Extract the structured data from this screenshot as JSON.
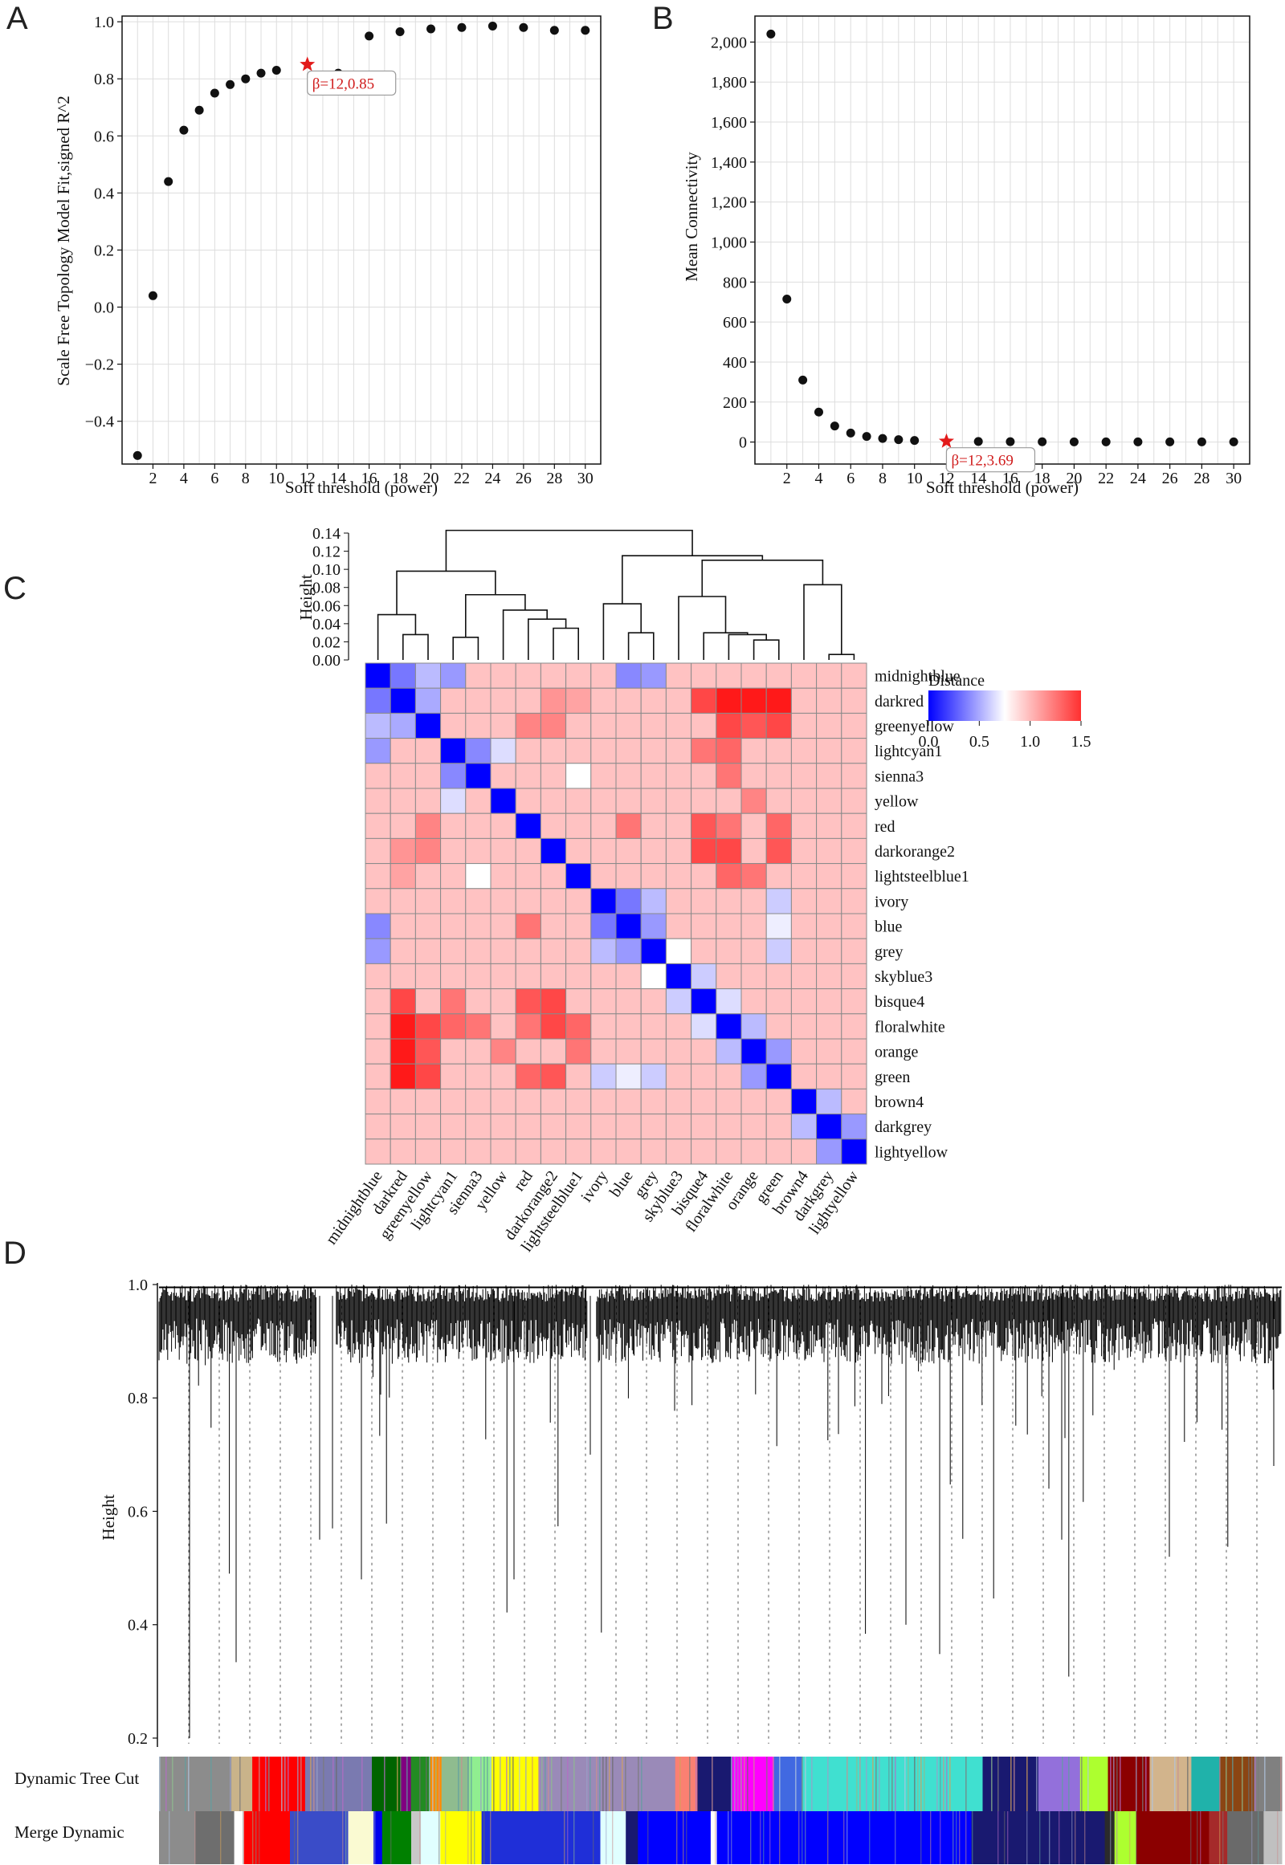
{
  "panels": {
    "a": "A",
    "b": "B",
    "c": "C",
    "d": "D"
  },
  "chart_data": [
    {
      "type": "scatter",
      "panel": "A",
      "xlabel": "Soft threshold (power)",
      "ylabel": "Scale Free Topology Model Fit,signed R^2",
      "xlim": [
        0,
        31
      ],
      "ylim": [
        -0.55,
        1.02
      ],
      "xticks": [
        2,
        4,
        6,
        8,
        10,
        12,
        14,
        16,
        18,
        20,
        22,
        24,
        26,
        28,
        30
      ],
      "yticks": [
        -0.4,
        -0.2,
        0.0,
        0.2,
        0.4,
        0.6,
        0.8,
        1.0
      ],
      "ytick_labels": [
        "−0.4",
        "−0.2",
        "0.0",
        "0.2",
        "0.4",
        "0.6",
        "0.8",
        "1.0"
      ],
      "x": [
        1,
        2,
        3,
        4,
        5,
        6,
        7,
        8,
        9,
        10,
        14,
        16,
        18,
        20,
        22,
        24,
        26,
        28,
        30
      ],
      "y": [
        -0.52,
        0.04,
        0.44,
        0.62,
        0.69,
        0.75,
        0.78,
        0.8,
        0.82,
        0.83,
        0.82,
        0.95,
        0.965,
        0.975,
        0.98,
        0.985,
        0.98,
        0.97,
        0.97
      ],
      "highlight": {
        "x": 12,
        "y": 0.85,
        "label": "β=12,0.85"
      }
    },
    {
      "type": "scatter",
      "panel": "B",
      "xlabel": "Soft threshold (power)",
      "ylabel": "Mean Connectivity",
      "xlim": [
        0,
        31
      ],
      "ylim": [
        -110,
        2130
      ],
      "xticks": [
        2,
        4,
        6,
        8,
        10,
        12,
        14,
        16,
        18,
        20,
        22,
        24,
        26,
        28,
        30
      ],
      "yticks": [
        0,
        200,
        400,
        600,
        800,
        1000,
        1200,
        1400,
        1600,
        1800,
        2000
      ],
      "ytick_labels": [
        "0",
        "200",
        "400",
        "600",
        "800",
        "1,000",
        "1,200",
        "1,400",
        "1,600",
        "1,800",
        "2,000"
      ],
      "x": [
        1,
        2,
        3,
        4,
        5,
        6,
        7,
        8,
        9,
        10,
        14,
        16,
        18,
        20,
        22,
        24,
        26,
        28,
        30
      ],
      "y": [
        2040,
        715,
        310,
        150,
        80,
        45,
        28,
        18,
        12,
        8,
        3,
        2,
        1.5,
        1,
        1,
        1,
        1,
        1,
        1
      ],
      "highlight": {
        "x": 12,
        "y": 3.69,
        "label": "β=12,3.69"
      }
    },
    {
      "type": "heatmap",
      "panel": "C",
      "title": "Distance",
      "dendrogram_ylabel": "Height",
      "dendrogram_ticks": [
        "0.00",
        "0.02",
        "0.04",
        "0.06",
        "0.08",
        "0.10",
        "0.12",
        "0.14"
      ],
      "dendrogram_tick_values": [
        0,
        0.02,
        0.04,
        0.06,
        0.08,
        0.1,
        0.12,
        0.14
      ],
      "labels": [
        "midnightblue",
        "darkred",
        "greenyellow",
        "lightcyan1",
        "sienna3",
        "yellow",
        "red",
        "darkorange2",
        "lightsteelblue1",
        "ivory",
        "blue",
        "grey",
        "skyblue3",
        "bisque4",
        "floralwhite",
        "orange",
        "green",
        "brown4",
        "darkgrey",
        "lightyellow"
      ],
      "legend_ticks": [
        "0.0",
        "0.5",
        "1.0",
        "1.5"
      ],
      "legend_values": [
        0,
        0.5,
        1.0,
        1.5
      ],
      "range": [
        0,
        1.5
      ]
    },
    {
      "type": "dendrogram",
      "panel": "D",
      "ylabel": "Height",
      "ylim": [
        0.19,
        1.0
      ],
      "yticks": [
        0.2,
        0.4,
        0.6,
        0.8,
        1.0
      ],
      "ytick_labels": [
        "0.2",
        "0.4",
        "0.6",
        "0.8",
        "1.0"
      ],
      "color_rows": [
        "Dynamic Tree Cut",
        "Merge Dynamic"
      ],
      "merged_segments": [
        {
          "color": "#8c8c8c",
          "w": 3.0
        },
        {
          "color": "#6e6e6e",
          "w": 3.2
        },
        {
          "color": "#ffffff",
          "w": 0.8
        },
        {
          "color": "#ff0000",
          "w": 3.8
        },
        {
          "color": "#3a4cc8",
          "w": 4.8
        },
        {
          "color": "#fafad2",
          "w": 2.1
        },
        {
          "color": "#0000ee",
          "w": 0.7
        },
        {
          "color": "#008000",
          "w": 2.4
        },
        {
          "color": "#c8c8c8",
          "w": 0.8
        },
        {
          "color": "#e0ffff",
          "w": 1.6
        },
        {
          "color": "#ffff00",
          "w": 3.4
        },
        {
          "color": "#1f2fd8",
          "w": 9.8
        },
        {
          "color": "#e0ffff",
          "w": 2.1
        },
        {
          "color": "#191970",
          "w": 1.0
        },
        {
          "color": "#0000ff",
          "w": 6.0
        },
        {
          "color": "#ffffff",
          "w": 0.5
        },
        {
          "color": "#0000ff",
          "w": 21.0
        },
        {
          "color": "#191970",
          "w": 11.0
        },
        {
          "color": "#2b2b2b",
          "w": 0.8
        },
        {
          "color": "#adff2f",
          "w": 1.8
        },
        {
          "color": "#8b0000",
          "w": 6.0
        },
        {
          "color": "#a52a2a",
          "w": 1.5
        },
        {
          "color": "#6a6a6a",
          "w": 3.0
        },
        {
          "color": "#c0c0c0",
          "w": 1.5
        }
      ],
      "dynamic_segments": [
        {
          "color": "#8c8c8c",
          "w": 5.2
        },
        {
          "color": "#c9b38a",
          "w": 1.5
        },
        {
          "color": "#ff0000",
          "w": 3.8
        },
        {
          "color": "#7a7ab0",
          "w": 4.8
        },
        {
          "color": "#006400",
          "w": 2.1
        },
        {
          "color": "#800080",
          "w": 0.7
        },
        {
          "color": "#228b22",
          "w": 1.4
        },
        {
          "color": "#ff8c00",
          "w": 0.8
        },
        {
          "color": "#8fbc8f",
          "w": 2.0
        },
        {
          "color": "#90ee90",
          "w": 1.6
        },
        {
          "color": "#ffff00",
          "w": 3.4
        },
        {
          "color": "#9a8ab8",
          "w": 9.8
        },
        {
          "color": "#fa8072",
          "w": 1.6
        },
        {
          "color": "#191970",
          "w": 2.5
        },
        {
          "color": "#ff00ff",
          "w": 3.0
        },
        {
          "color": "#4169e1",
          "w": 2.0
        },
        {
          "color": "#40e0d0",
          "w": 13.0
        },
        {
          "color": "#191970",
          "w": 4.0
        },
        {
          "color": "#9370db",
          "w": 3.0
        },
        {
          "color": "#adff2f",
          "w": 2.0
        },
        {
          "color": "#8b0000",
          "w": 3.0
        },
        {
          "color": "#d2b48c",
          "w": 3.0
        },
        {
          "color": "#20b2aa",
          "w": 2.0
        },
        {
          "color": "#8b4513",
          "w": 2.5
        },
        {
          "color": "#808080",
          "w": 2.0
        }
      ]
    }
  ]
}
